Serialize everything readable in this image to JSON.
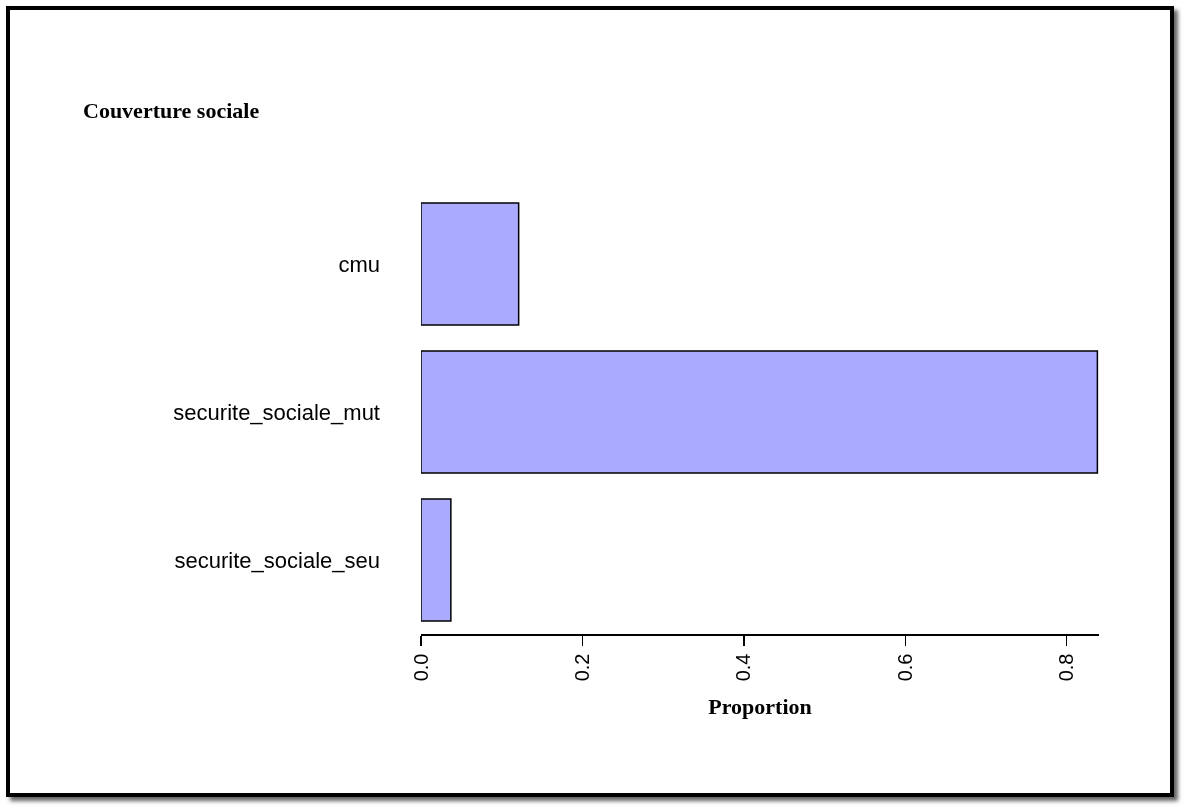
{
  "chart_data": {
    "type": "bar",
    "title": "Couverture sociale",
    "xlabel": "Proportion",
    "orientation": "horizontal",
    "categories": [
      "cmu",
      "securite_sociale_mut",
      "securite_sociale_seu"
    ],
    "values": [
      0.121,
      0.838,
      0.037
    ],
    "color": "#aaaaff",
    "xlim": [
      0,
      0.84
    ],
    "xticks": [
      {
        "value": 0,
        "label": "0.0"
      },
      0.2,
      0.4,
      0.6,
      0.8
    ],
    "grid": false
  }
}
